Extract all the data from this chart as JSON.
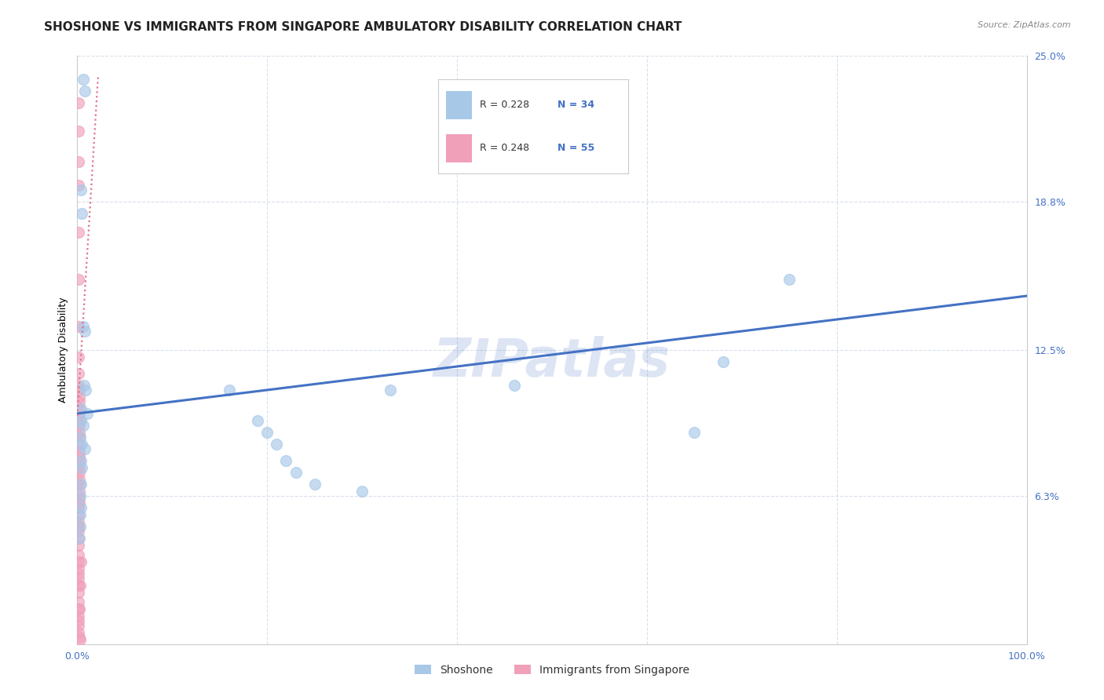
{
  "title": "SHOSHONE VS IMMIGRANTS FROM SINGAPORE AMBULATORY DISABILITY CORRELATION CHART",
  "source": "Source: ZipAtlas.com",
  "ylabel": "Ambulatory Disability",
  "watermark": "ZIPatlas",
  "xlim": [
    0.0,
    1.0
  ],
  "ylim": [
    0.0,
    0.25
  ],
  "ytick_vals": [
    0.0,
    0.063,
    0.125,
    0.188,
    0.25
  ],
  "ytick_labels": [
    "",
    "6.3%",
    "12.5%",
    "18.8%",
    "25.0%"
  ],
  "xtick_vals": [
    0.0,
    0.2,
    0.4,
    0.6,
    0.8,
    1.0
  ],
  "xtick_labels": [
    "0.0%",
    "",
    "",
    "",
    "",
    "100.0%"
  ],
  "shoshone_color": "#a8c8e8",
  "singapore_color": "#f0a0b8",
  "line_blue_color": "#4472c4",
  "line_pink_color": "#e07090",
  "legend_box_color": "#e8f0f8",
  "shoshone_points": [
    [
      0.006,
      0.24
    ],
    [
      0.008,
      0.235
    ],
    [
      0.004,
      0.193
    ],
    [
      0.005,
      0.183
    ],
    [
      0.006,
      0.135
    ],
    [
      0.008,
      0.133
    ],
    [
      0.007,
      0.11
    ],
    [
      0.009,
      0.108
    ],
    [
      0.004,
      0.1
    ],
    [
      0.01,
      0.098
    ],
    [
      0.004,
      0.095
    ],
    [
      0.006,
      0.093
    ],
    [
      0.003,
      0.088
    ],
    [
      0.005,
      0.085
    ],
    [
      0.008,
      0.083
    ],
    [
      0.004,
      0.078
    ],
    [
      0.005,
      0.075
    ],
    [
      0.004,
      0.068
    ],
    [
      0.003,
      0.063
    ],
    [
      0.004,
      0.058
    ],
    [
      0.003,
      0.055
    ],
    [
      0.003,
      0.05
    ],
    [
      0.002,
      0.045
    ],
    [
      0.16,
      0.108
    ],
    [
      0.19,
      0.095
    ],
    [
      0.2,
      0.09
    ],
    [
      0.21,
      0.085
    ],
    [
      0.22,
      0.078
    ],
    [
      0.23,
      0.073
    ],
    [
      0.25,
      0.068
    ],
    [
      0.3,
      0.065
    ],
    [
      0.33,
      0.108
    ],
    [
      0.46,
      0.11
    ],
    [
      0.68,
      0.12
    ],
    [
      0.75,
      0.155
    ],
    [
      0.65,
      0.09
    ]
  ],
  "singapore_points": [
    [
      0.001,
      0.23
    ],
    [
      0.001,
      0.218
    ],
    [
      0.001,
      0.205
    ],
    [
      0.001,
      0.195
    ],
    [
      0.001,
      0.175
    ],
    [
      0.001,
      0.155
    ],
    [
      0.001,
      0.135
    ],
    [
      0.001,
      0.122
    ],
    [
      0.001,
      0.115
    ],
    [
      0.001,
      0.11
    ],
    [
      0.002,
      0.108
    ],
    [
      0.002,
      0.105
    ],
    [
      0.002,
      0.103
    ],
    [
      0.002,
      0.1
    ],
    [
      0.002,
      0.098
    ],
    [
      0.002,
      0.095
    ],
    [
      0.002,
      0.093
    ],
    [
      0.002,
      0.09
    ],
    [
      0.002,
      0.088
    ],
    [
      0.002,
      0.085
    ],
    [
      0.002,
      0.082
    ],
    [
      0.002,
      0.08
    ],
    [
      0.002,
      0.078
    ],
    [
      0.002,
      0.075
    ],
    [
      0.002,
      0.073
    ],
    [
      0.002,
      0.07
    ],
    [
      0.002,
      0.068
    ],
    [
      0.002,
      0.065
    ],
    [
      0.002,
      0.062
    ],
    [
      0.002,
      0.06
    ],
    [
      0.001,
      0.058
    ],
    [
      0.001,
      0.055
    ],
    [
      0.001,
      0.052
    ],
    [
      0.001,
      0.05
    ],
    [
      0.001,
      0.048
    ],
    [
      0.001,
      0.045
    ],
    [
      0.001,
      0.042
    ],
    [
      0.001,
      0.038
    ],
    [
      0.001,
      0.035
    ],
    [
      0.001,
      0.032
    ],
    [
      0.001,
      0.03
    ],
    [
      0.001,
      0.028
    ],
    [
      0.001,
      0.025
    ],
    [
      0.001,
      0.022
    ],
    [
      0.001,
      0.018
    ],
    [
      0.001,
      0.015
    ],
    [
      0.001,
      0.012
    ],
    [
      0.001,
      0.01
    ],
    [
      0.001,
      0.008
    ],
    [
      0.001,
      0.005
    ],
    [
      0.002,
      0.003
    ],
    [
      0.003,
      0.002
    ],
    [
      0.002,
      0.015
    ],
    [
      0.003,
      0.025
    ],
    [
      0.004,
      0.035
    ]
  ],
  "shoshone_line": [
    [
      0.0,
      0.098
    ],
    [
      1.0,
      0.148
    ]
  ],
  "singapore_line": [
    [
      0.0,
      0.097
    ],
    [
      0.022,
      0.242
    ]
  ],
  "background_color": "#ffffff",
  "grid_color": "#d8e0ec",
  "title_fontsize": 11,
  "axis_label_fontsize": 9,
  "tick_fontsize": 9,
  "watermark_fontsize": 48,
  "watermark_alpha": 0.18,
  "marker_size": 100,
  "marker_alpha": 0.65
}
